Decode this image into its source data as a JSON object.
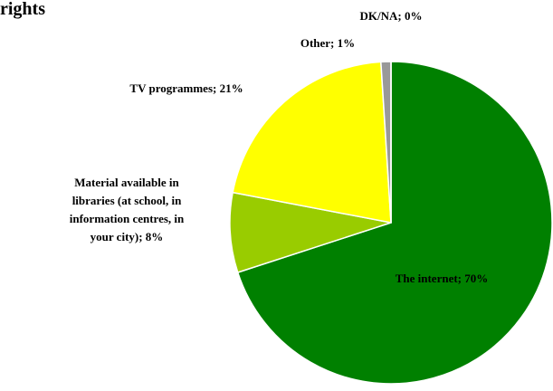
{
  "chart_data": {
    "type": "pie",
    "title": "rights",
    "categories": [
      "The internet",
      "Material available in libraries (at school, in information centres, in your city)",
      "TV programmes",
      "Other",
      "DK/NA"
    ],
    "values": [
      70,
      8,
      21,
      1,
      0
    ],
    "labels": [
      [
        "The internet; 70%"
      ],
      [
        "Material available in",
        "libraries (at school, in",
        "information centres, in",
        "your city); 8%"
      ],
      [
        "TV programmes; 21%"
      ],
      [
        "Other; 1%"
      ],
      [
        "DK/NA; 0%"
      ]
    ],
    "colors": [
      "#008000",
      "#99cc00",
      "#ffff00",
      "#999999",
      "#ffffff"
    ],
    "label_colors": [
      "#ffffff",
      "#000000",
      "#000000",
      "#000000",
      "#000000"
    ]
  }
}
